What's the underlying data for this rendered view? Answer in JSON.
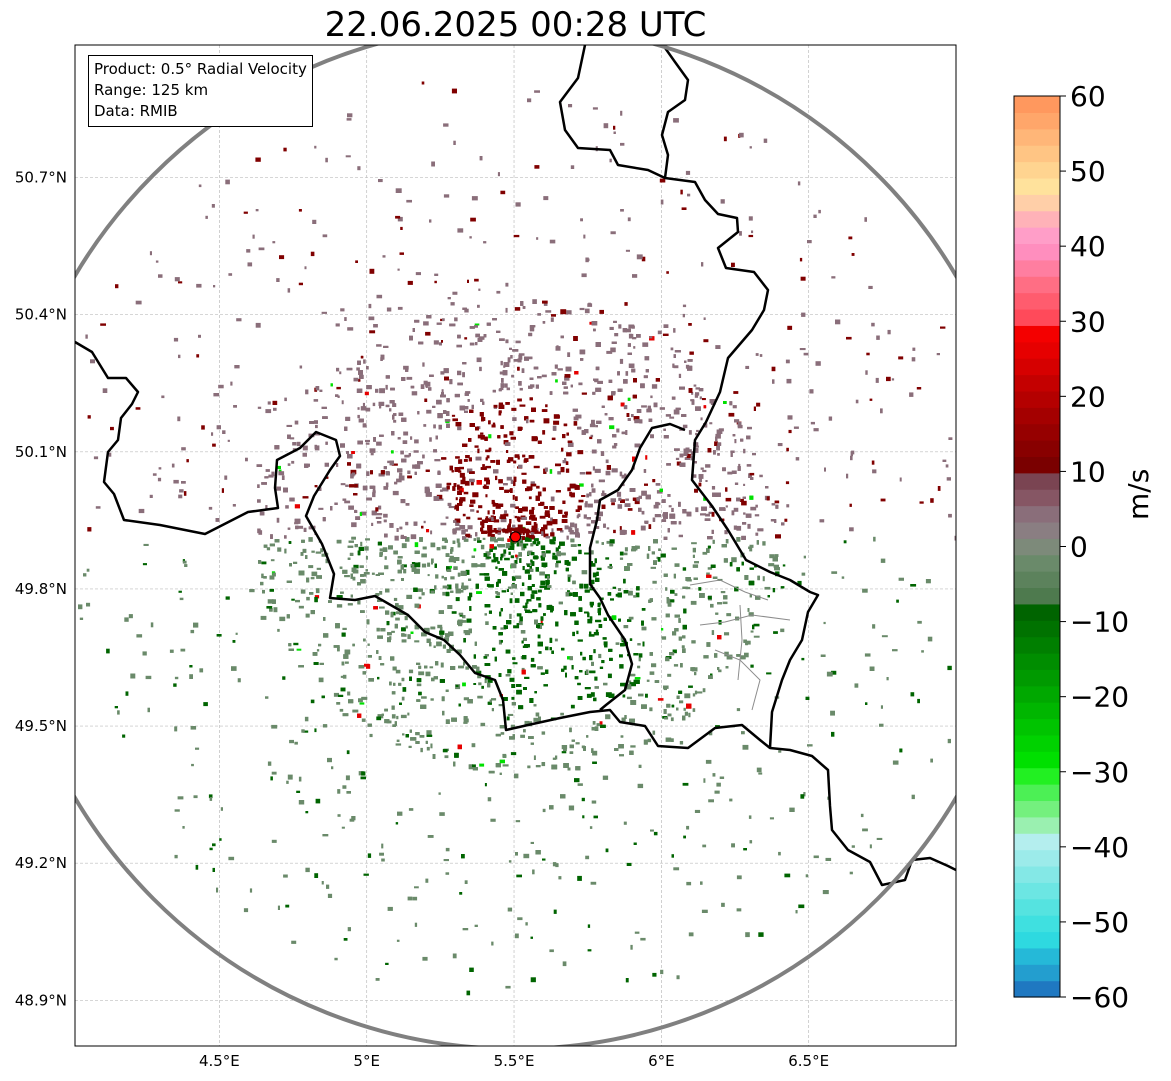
{
  "title": "22.06.2025 00:28 UTC",
  "info": {
    "product": "Product: 0.5° Radial Velocity",
    "range": "Range: 125 km",
    "data": "Data: RMIB"
  },
  "map": {
    "lon_range": [
      4.01,
      7.0
    ],
    "lat_range": [
      48.8,
      50.99
    ],
    "lon_ticks": [
      {
        "value": 4.5,
        "label": "4.5°E"
      },
      {
        "value": 5.0,
        "label": "5°E"
      },
      {
        "value": 5.5,
        "label": "5.5°E"
      },
      {
        "value": 6.0,
        "label": "6°E"
      },
      {
        "value": 6.5,
        "label": "6.5°E"
      }
    ],
    "lat_ticks": [
      {
        "value": 48.9,
        "label": "48.9°N"
      },
      {
        "value": 49.2,
        "label": "49.2°N"
      },
      {
        "value": 49.5,
        "label": "49.5°N"
      },
      {
        "value": 49.8,
        "label": "49.8°N"
      },
      {
        "value": 50.1,
        "label": "50.1°N"
      },
      {
        "value": 50.4,
        "label": "50.4°N"
      },
      {
        "value": 50.7,
        "label": "50.7°N"
      }
    ],
    "radar_site": {
      "lon": 5.505,
      "lat": 49.914
    },
    "range_ring_km": 125,
    "grid": true,
    "ring_color": "#808080",
    "border_color": "#000000",
    "site_marker_color": "#ff0000"
  },
  "colorbar": {
    "label": "m/s",
    "min": -60,
    "max": 60,
    "ticks": [
      {
        "value": 60,
        "label": "60"
      },
      {
        "value": 50,
        "label": "50"
      },
      {
        "value": 40,
        "label": "40"
      },
      {
        "value": 30,
        "label": "30"
      },
      {
        "value": 20,
        "label": "20"
      },
      {
        "value": 10,
        "label": "10"
      },
      {
        "value": 0,
        "label": "0"
      },
      {
        "value": -10,
        "label": "−10"
      },
      {
        "value": -20,
        "label": "−20"
      },
      {
        "value": -30,
        "label": "−30"
      },
      {
        "value": -40,
        "label": "−40"
      },
      {
        "value": -50,
        "label": "−50"
      },
      {
        "value": -60,
        "label": "−60"
      }
    ],
    "colors": [
      "#1f78c1",
      "#239ecf",
      "#25b9d8",
      "#2ed9e0",
      "#3fe0e0",
      "#55e3e0",
      "#6ce6e3",
      "#84e8e6",
      "#9cebea",
      "#b4eeee",
      "#9af0b0",
      "#74f07e",
      "#4cf055",
      "#22f022",
      "#00e000",
      "#00d200",
      "#00c400",
      "#00b600",
      "#00a800",
      "#009a00",
      "#008d00",
      "#007f00",
      "#007200",
      "#006400",
      "#4e7a4e",
      "#5c825c",
      "#6a8a6a",
      "#7d8a7a",
      "#8a7e82",
      "#8a6e7a",
      "#865664",
      "#7a4452",
      "#7a0000",
      "#880000",
      "#960000",
      "#a40000",
      "#b40000",
      "#c40000",
      "#d60000",
      "#e60000",
      "#f40000",
      "#ff4a5a",
      "#ff5c6e",
      "#ff6e84",
      "#ff7ea0",
      "#ff8ebe",
      "#ff9ec8",
      "#ffb2b8",
      "#ffcfa8",
      "#ffe29c",
      "#ffd490",
      "#ffc584",
      "#ffb678",
      "#ffa66a",
      "#ff985e"
    ]
  },
  "echo_colors": {
    "outbound_strong": "#800000",
    "outbound_weak": "#8a6e7a",
    "inbound_weak": "#6a8a6a",
    "inbound_strong": "#006400",
    "inbound_bright": "#00e000",
    "outbound_bright": "#e60000"
  }
}
